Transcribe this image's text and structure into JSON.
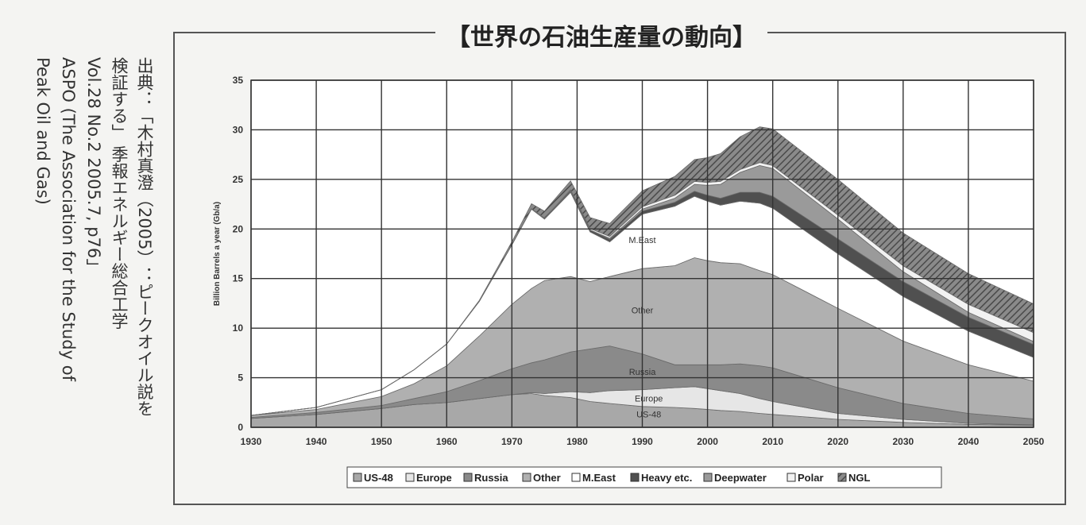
{
  "title": "【世界の石油生産量の動向】",
  "source": {
    "lines": [
      "出典：「木村真澄（2005）：ピークオイル説を",
      "検証する」 季報エネルギー総合工学",
      "Vol.28 No.2 2005.7, p76」",
      "ASPO (The Association for the Study of",
      "Peak Oil and Gas)"
    ]
  },
  "chart_data": {
    "type": "area",
    "stacked": true,
    "title": "",
    "xlabel": "",
    "ylabel": "Billion Barrels a year (Gb/a)",
    "xlim": [
      1930,
      2050
    ],
    "ylim": [
      0,
      35
    ],
    "grid": true,
    "legend_position": "bottom",
    "x_ticks": [
      1930,
      1940,
      1950,
      1960,
      1970,
      1980,
      1990,
      2000,
      2010,
      2020,
      2030,
      2040,
      2050
    ],
    "y_ticks": [
      0,
      5,
      10,
      15,
      20,
      25,
      30,
      35
    ],
    "x": [
      1930,
      1940,
      1950,
      1955,
      1960,
      1965,
      1970,
      1973,
      1975,
      1979,
      1982,
      1985,
      1990,
      1995,
      1998,
      2000,
      2002,
      2005,
      2008,
      2010,
      2020,
      2030,
      2040,
      2050
    ],
    "series": [
      {
        "name": "US-48",
        "color": "#a8a8a8",
        "values": [
          0.9,
          1.3,
          1.9,
          2.3,
          2.5,
          2.9,
          3.3,
          3.4,
          3.2,
          3.0,
          2.6,
          2.4,
          2.1,
          2.0,
          1.9,
          1.8,
          1.7,
          1.6,
          1.4,
          1.3,
          0.8,
          0.5,
          0.3,
          0.2
        ]
      },
      {
        "name": "Europe",
        "color": "#e6e6e6",
        "values": [
          0,
          0,
          0,
          0,
          0,
          0,
          0,
          0.1,
          0.2,
          0.6,
          0.9,
          1.3,
          1.7,
          2.0,
          2.2,
          2.1,
          2.0,
          1.8,
          1.5,
          1.3,
          0.6,
          0.3,
          0.1,
          0.05
        ]
      },
      {
        "name": "Russia",
        "color": "#8a8a8a",
        "values": [
          0.1,
          0.2,
          0.3,
          0.6,
          1.1,
          1.8,
          2.6,
          3.0,
          3.4,
          4.0,
          4.4,
          4.5,
          3.6,
          2.3,
          2.2,
          2.4,
          2.6,
          3.0,
          3.3,
          3.4,
          2.6,
          1.6,
          1.0,
          0.6
        ]
      },
      {
        "name": "Other",
        "color": "#b0b0b0",
        "values": [
          0.2,
          0.3,
          0.9,
          1.5,
          2.6,
          4.5,
          6.5,
          7.5,
          8.0,
          7.6,
          6.8,
          7.0,
          8.6,
          10.0,
          10.8,
          10.5,
          10.3,
          10.1,
          9.6,
          9.4,
          8.0,
          6.3,
          4.9,
          3.8
        ]
      },
      {
        "name": "M.East",
        "color": "#ffffff",
        "values": [
          0.0,
          0.2,
          0.7,
          1.4,
          2.2,
          3.5,
          6.0,
          8.0,
          6.2,
          8.5,
          5.0,
          3.5,
          5.5,
          6.0,
          6.2,
          6.0,
          5.8,
          6.3,
          6.8,
          6.7,
          5.5,
          4.5,
          3.4,
          2.4
        ]
      },
      {
        "name": "Heavy etc.",
        "color": "#505050",
        "values": [
          0,
          0,
          0,
          0,
          0,
          0,
          0,
          0.05,
          0.1,
          0.15,
          0.2,
          0.25,
          0.3,
          0.4,
          0.5,
          0.6,
          0.7,
          0.9,
          1.1,
          1.2,
          1.5,
          1.5,
          1.4,
          1.3
        ]
      },
      {
        "name": "Deepwater",
        "color": "#9a9a9a",
        "values": [
          0,
          0,
          0,
          0,
          0,
          0,
          0,
          0,
          0,
          0,
          0,
          0.1,
          0.2,
          0.4,
          0.7,
          1.0,
          1.4,
          2.0,
          2.7,
          2.8,
          2.0,
          1.0,
          0.5,
          0.3
        ]
      },
      {
        "name": "Polar",
        "color": "#f2f2f2",
        "values": [
          0,
          0,
          0,
          0,
          0,
          0,
          0,
          0,
          0,
          0.1,
          0.15,
          0.2,
          0.25,
          0.3,
          0.3,
          0.3,
          0.3,
          0.3,
          0.3,
          0.3,
          0.4,
          0.6,
          0.8,
          0.9
        ]
      },
      {
        "name": "NGL",
        "color": "#6e6e6e",
        "values": [
          0,
          0,
          0,
          0,
          0,
          0.1,
          0.3,
          0.5,
          0.7,
          0.9,
          1.1,
          1.3,
          1.6,
          1.9,
          2.2,
          2.5,
          2.8,
          3.3,
          3.6,
          3.7,
          3.6,
          3.3,
          3.1,
          2.9
        ]
      }
    ],
    "annotations": [
      {
        "text": "M.East",
        "x": 1990,
        "y": 18.6
      },
      {
        "text": "Other",
        "x": 1990,
        "y": 11.5
      },
      {
        "text": "Russia",
        "x": 1990,
        "y": 5.3
      },
      {
        "text": "Europe",
        "x": 1991,
        "y": 2.6
      },
      {
        "text": "US-48",
        "x": 1991,
        "y": 1.0
      }
    ]
  }
}
